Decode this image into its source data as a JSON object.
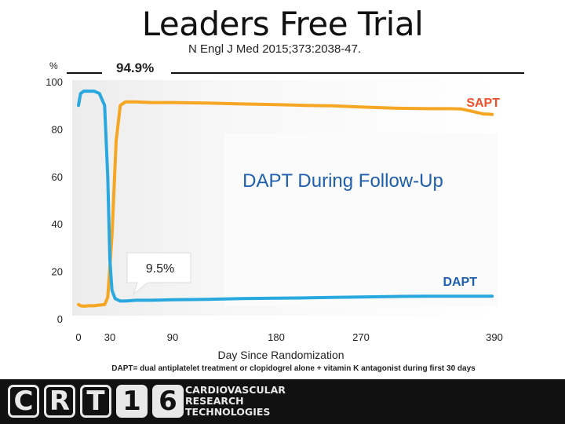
{
  "slide": {
    "title": "Leaders Free Trial",
    "citation": "N Engl J Med 2015;373:2038-47.",
    "footnote": "DAPT= dual antiplatelet treatment or clopidogrel alone + vitamin K antagonist during first 30 days"
  },
  "footer": {
    "logo_letters": [
      "C",
      "R",
      "T",
      "1",
      "6"
    ],
    "logo_lines": [
      "CARDIOVASCULAR",
      "RESEARCH",
      "TECHNOLOGIES"
    ]
  },
  "chart_data": {
    "type": "line",
    "title": "",
    "xlabel": "Day Since Randomization",
    "ylabel": "%",
    "x_ticks": [
      0,
      30,
      90,
      180,
      270,
      390
    ],
    "y_ticks": [
      0,
      20,
      40,
      60,
      80,
      100
    ],
    "xlim": [
      0,
      390
    ],
    "ylim": [
      0,
      100
    ],
    "grid": false,
    "colors": {
      "SAPT": "#f5a623",
      "DAPT": "#29a8e0"
    },
    "series": [
      {
        "name": "SAPT",
        "label": "SAPT",
        "x": [
          0,
          2,
          5,
          10,
          15,
          20,
          25,
          28,
          32,
          36,
          40,
          45,
          55,
          70,
          90,
          120,
          150,
          180,
          210,
          240,
          260,
          270,
          300,
          330,
          350,
          360,
          370,
          380,
          385,
          388
        ],
        "y": [
          6,
          5.5,
          5.3,
          5.5,
          5.5,
          5.8,
          6,
          9,
          35,
          75,
          90,
          91.5,
          91.5,
          91.2,
          91.2,
          91,
          90.6,
          90.3,
          90,
          89.8,
          89.5,
          89.3,
          88.8,
          88.6,
          88.6,
          88.5,
          87.5,
          86.4,
          86.3,
          86.2
        ]
      },
      {
        "name": "DAPT",
        "label": "DAPT",
        "x": [
          0,
          2,
          5,
          10,
          15,
          20,
          25,
          28,
          30,
          32,
          35,
          40,
          45,
          55,
          70,
          90,
          120,
          150,
          180,
          210,
          240,
          270,
          300,
          330,
          360,
          388
        ],
        "y": [
          90,
          95,
          96,
          96,
          96,
          95,
          90,
          60,
          25,
          12,
          8.5,
          7.5,
          7.5,
          7.8,
          7.8,
          8,
          8.2,
          8.5,
          8.7,
          8.8,
          9,
          9.2,
          9.4,
          9.5,
          9.5,
          9.5
        ]
      }
    ],
    "annotations": [
      {
        "text": "94.9%"
      },
      {
        "text": "9.5%"
      },
      {
        "text": "DAPT During Follow-Up"
      }
    ]
  }
}
